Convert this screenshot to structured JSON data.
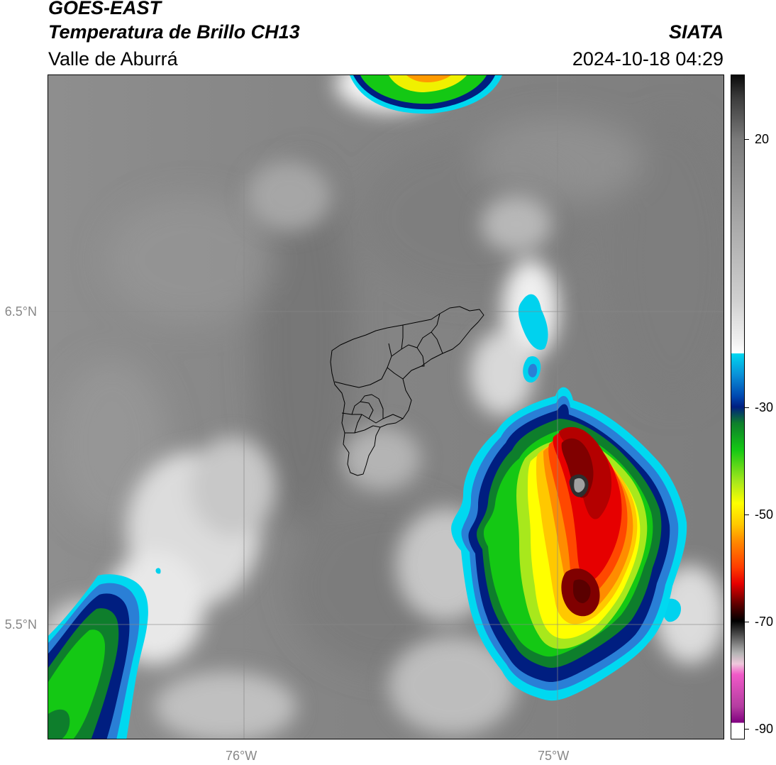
{
  "header": {
    "title": "GOES-EAST",
    "subtitle": "Temperatura de Brillo CH13",
    "region": "Valle de Aburrá",
    "brand": "SIATA",
    "timestamp": "2024-10-18 04:29"
  },
  "map": {
    "lat_labels": [
      "6.5°N",
      "5.5°N"
    ],
    "lon_labels": [
      "76°W",
      "75°W"
    ],
    "gridline_color": "#888888",
    "boundary_color": "#000000"
  },
  "colorbar": {
    "tick_labels": [
      "20",
      "-30",
      "-50",
      "-70",
      "-90"
    ],
    "tick_values": [
      20,
      -30,
      -50,
      -70,
      -90
    ],
    "range": [
      -92,
      32
    ],
    "colors": {
      "warm_gray": "#7a7a7a",
      "white": "#ffffff",
      "cyan": "#00d8f0",
      "navy": "#001e80",
      "green": "#14c814",
      "yellow": "#ffff00",
      "orange": "#ff8c00",
      "red": "#e60000",
      "dark_red": "#5a0000",
      "black": "#000000",
      "pink": "#f05ac8",
      "purple": "#800080"
    }
  }
}
